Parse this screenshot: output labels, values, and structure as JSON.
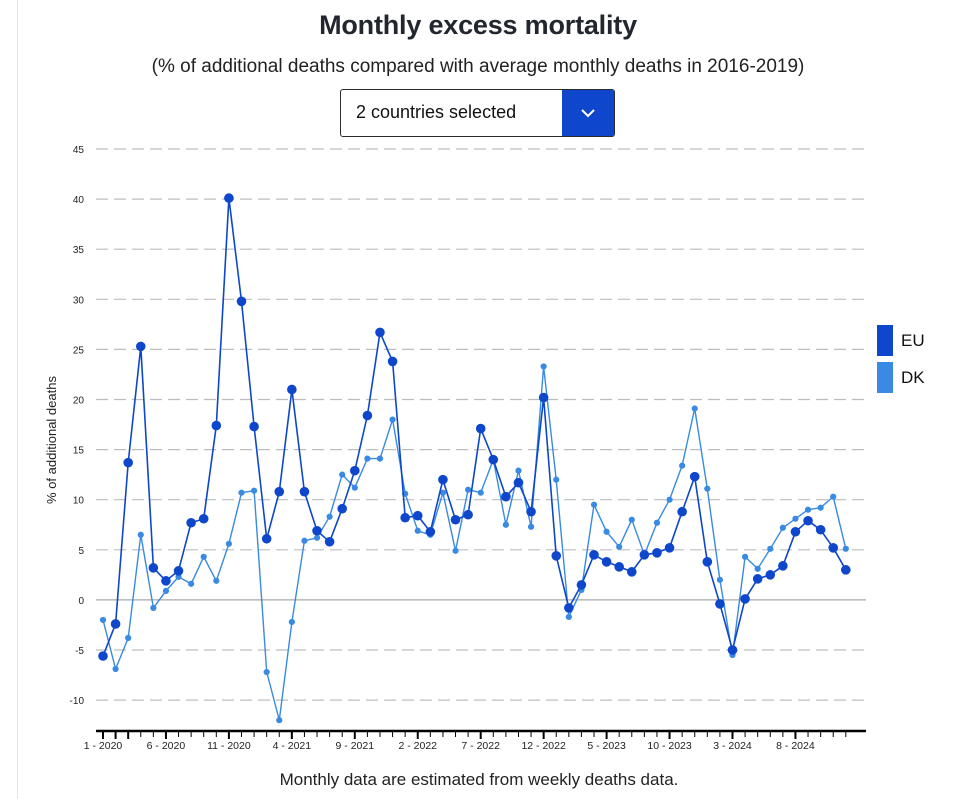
{
  "header": {
    "title": "Monthly excess mortality",
    "subtitle": "(% of additional deaths compared with average monthly deaths in 2016-2019)"
  },
  "selector": {
    "label": "2 countries selected",
    "icon": "chevron-down-icon"
  },
  "footnote": "Monthly data are estimated from weekly deaths data.",
  "colors": {
    "eu": "#0e47cb",
    "dk": "#388ae2",
    "grid": "#bdbdbd",
    "zero": "#a8a8a8",
    "axis": "#000000"
  },
  "chart_data": {
    "type": "line",
    "title": "Monthly excess mortality",
    "subtitle": "(% of additional deaths compared with average monthly deaths in 2016-2019)",
    "xlabel": "",
    "ylabel": "% of additional deaths",
    "ylim": [
      -13,
      45
    ],
    "yticks": [
      45,
      40,
      35,
      30,
      25,
      20,
      15,
      10,
      5,
      0,
      -5,
      -10
    ],
    "grid": true,
    "legend_position": "right",
    "x_start": "1 - 2020",
    "x_count": 60,
    "xtick_labels": [
      {
        "index": 0,
        "label": "1 - 2020"
      },
      {
        "index": 5,
        "label": "6 - 2020"
      },
      {
        "index": 10,
        "label": "11 - 2020"
      },
      {
        "index": 15,
        "label": "4 - 2021"
      },
      {
        "index": 20,
        "label": "9 - 2021"
      },
      {
        "index": 25,
        "label": "2 - 2022"
      },
      {
        "index": 30,
        "label": "7 - 2022"
      },
      {
        "index": 35,
        "label": "12 - 2022"
      },
      {
        "index": 40,
        "label": "5 - 2023"
      },
      {
        "index": 45,
        "label": "10 - 2023"
      },
      {
        "index": 50,
        "label": "3 - 2024"
      },
      {
        "index": 55,
        "label": "8 - 2024"
      }
    ],
    "series": [
      {
        "name": "EU",
        "key": "eu",
        "values": [
          -5.6,
          -2.4,
          13.7,
          25.3,
          3.2,
          1.9,
          2.9,
          7.7,
          8.1,
          17.4,
          40.1,
          29.8,
          17.3,
          6.1,
          10.8,
          21.0,
          10.8,
          6.9,
          5.8,
          9.1,
          12.9,
          18.4,
          26.7,
          23.8,
          8.2,
          8.4,
          6.8,
          12.0,
          8.0,
          8.5,
          17.1,
          14.0,
          10.3,
          11.7,
          8.8,
          20.2,
          4.4,
          -0.8,
          1.5,
          4.5,
          3.8,
          3.3,
          2.8,
          4.5,
          4.7,
          5.2,
          8.8,
          12.3,
          3.8,
          -0.4,
          -5.0,
          0.1,
          2.1,
          2.5,
          3.4,
          6.8,
          7.9,
          7.0,
          5.2,
          3.0
        ]
      },
      {
        "name": "DK",
        "key": "dk",
        "values": [
          -2.0,
          -6.9,
          -3.8,
          6.5,
          -0.8,
          0.9,
          2.3,
          1.6,
          4.3,
          1.9,
          5.6,
          10.7,
          10.9,
          -7.2,
          -12.0,
          -2.2,
          5.9,
          6.2,
          8.3,
          12.5,
          11.2,
          14.1,
          14.1,
          18.0,
          10.6,
          6.9,
          6.5,
          10.7,
          4.9,
          11.0,
          10.7,
          14.0,
          7.5,
          12.9,
          7.3,
          23.3,
          12.0,
          -1.7,
          1.0,
          9.5,
          6.8,
          5.3,
          8.0,
          4.5,
          7.7,
          10.0,
          13.4,
          19.1,
          11.1,
          2.0,
          -5.5,
          4.3,
          3.1,
          5.1,
          7.2,
          8.1,
          9.0,
          9.2,
          10.3,
          5.1
        ]
      }
    ]
  }
}
